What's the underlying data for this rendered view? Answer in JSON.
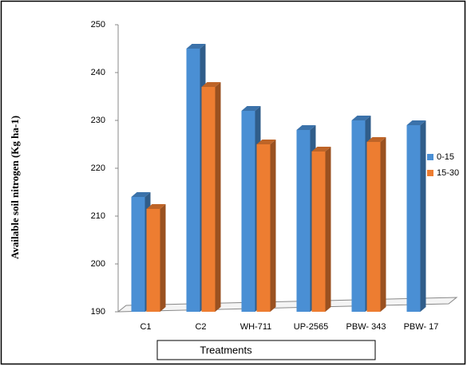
{
  "chart_data": {
    "type": "bar3d",
    "y_label": "Available soil nitrogen (Kg ha-1)",
    "x_label": "Treatments",
    "categories": [
      "C1",
      "C2",
      "WH-711",
      "UP-2565",
      "PBW- 343",
      "PBW- 17"
    ],
    "series": [
      {
        "name": "0-15",
        "color": "#4a8fd4",
        "values": [
          214,
          245,
          232,
          228,
          230,
          229
        ]
      },
      {
        "name": "15-30",
        "color": "#ed7d31",
        "values": [
          211.5,
          237,
          225,
          223.5,
          225.5,
          null
        ]
      }
    ],
    "ylim": [
      190,
      250
    ],
    "yticks": [
      190,
      200,
      210,
      220,
      230,
      240,
      250
    ],
    "legend": "right"
  }
}
